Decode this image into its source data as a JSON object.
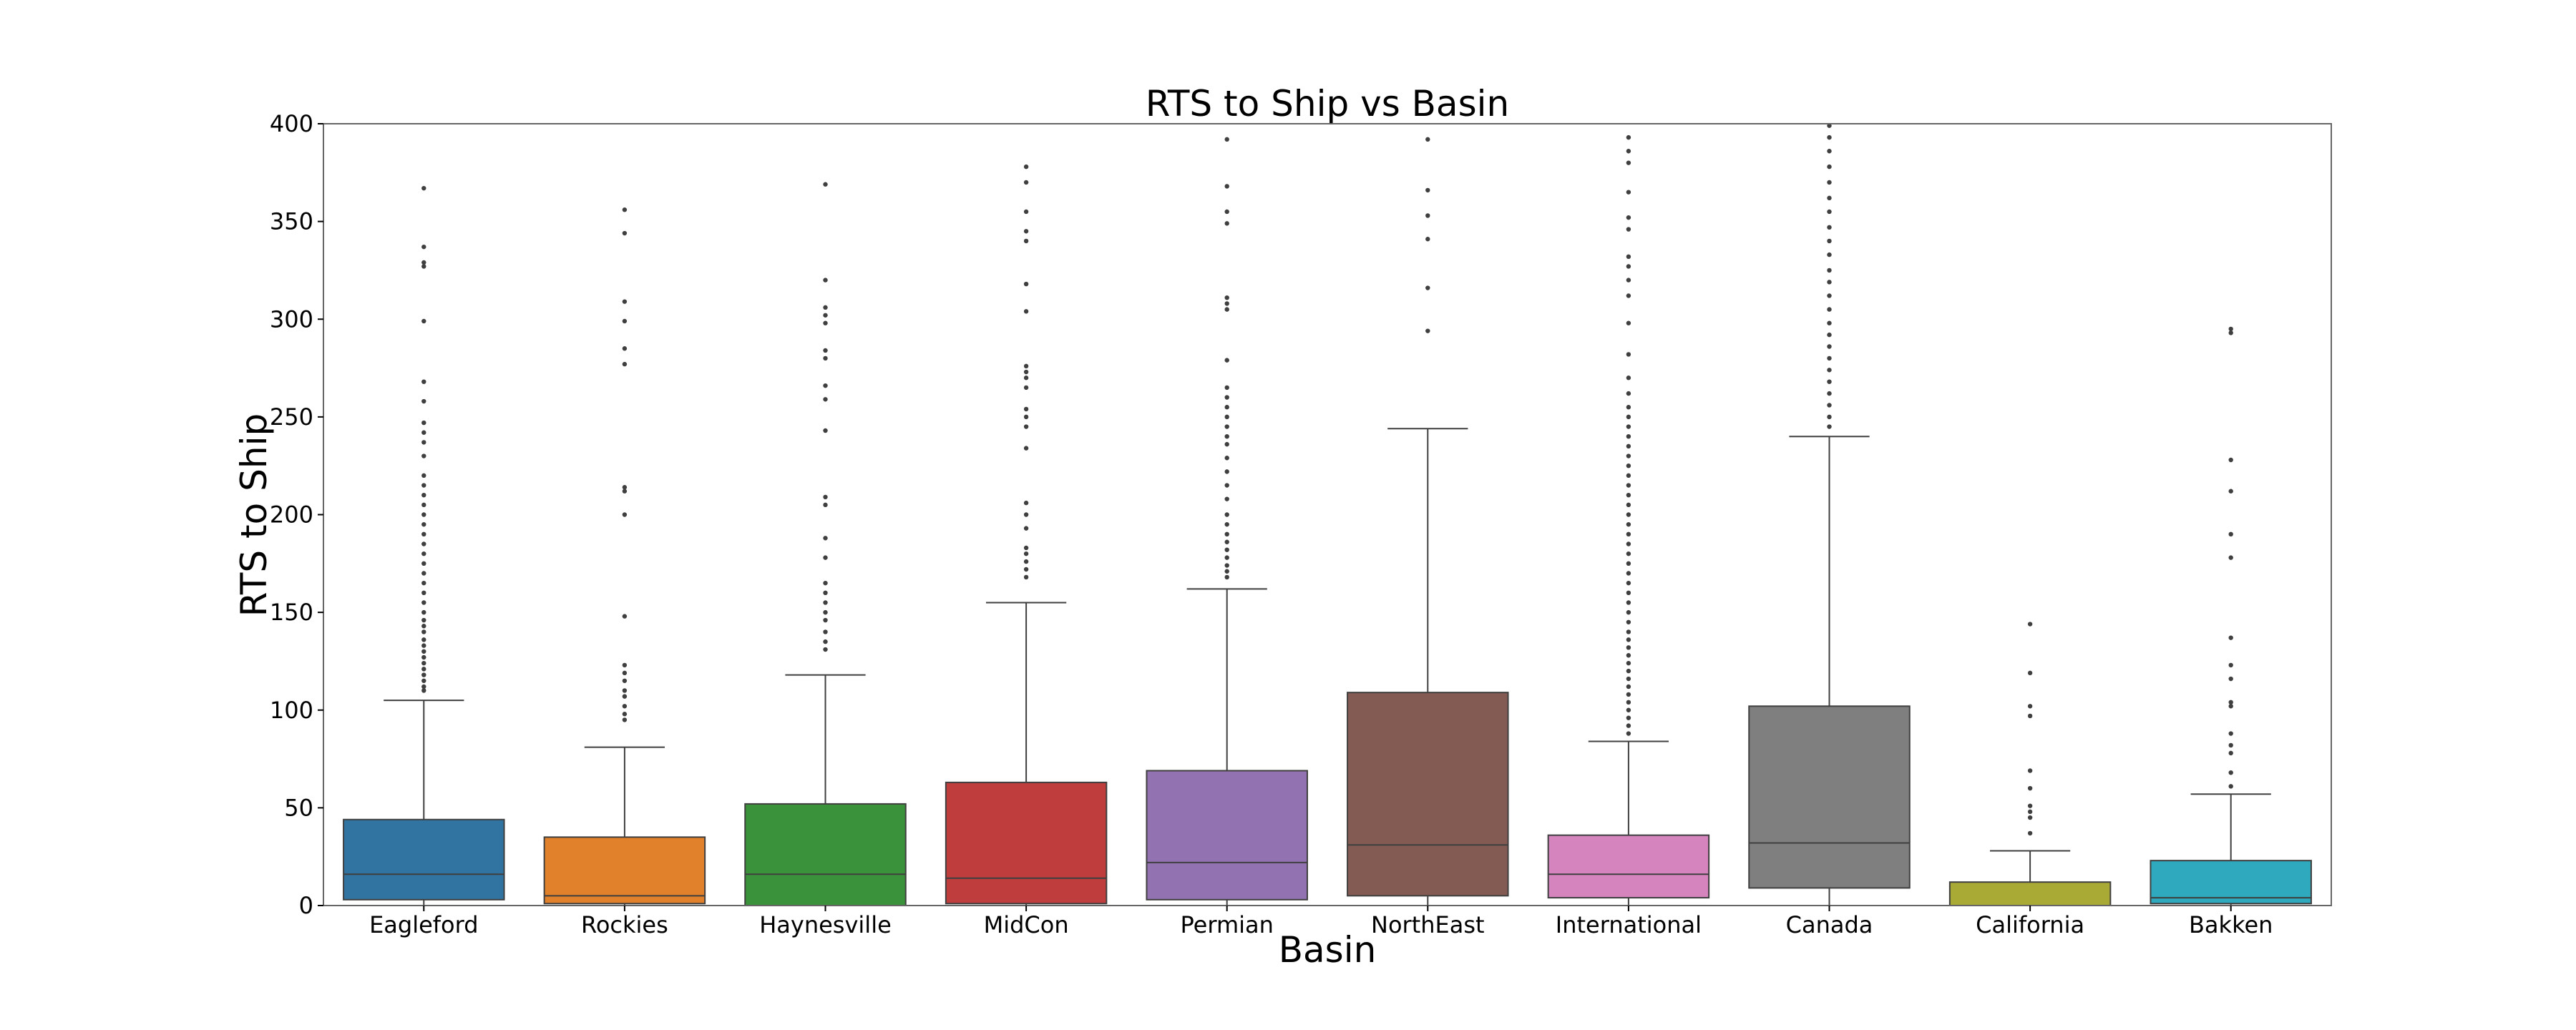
{
  "chart_data": {
    "type": "box",
    "title": "RTS to Ship vs Basin",
    "xlabel": "Basin",
    "ylabel": "RTS to Ship",
    "ylim": [
      0,
      400
    ],
    "yticks": [
      0,
      50,
      100,
      150,
      200,
      250,
      300,
      350,
      400
    ],
    "grid": false,
    "boxes": [
      {
        "category": "Eagleford",
        "color": "#3274a1",
        "whisker_low": 0,
        "q1": 3,
        "median": 16,
        "q3": 44,
        "whisker_high": 105,
        "outliers": [
          110,
          112,
          115,
          118,
          121,
          124,
          127,
          130,
          133,
          136,
          140,
          143,
          146,
          150,
          155,
          160,
          165,
          170,
          175,
          180,
          185,
          190,
          195,
          200,
          205,
          210,
          215,
          220,
          230,
          237,
          242,
          247,
          258,
          268,
          299,
          327,
          329,
          337,
          367
        ]
      },
      {
        "category": "Rockies",
        "color": "#e1812c",
        "whisker_low": 0,
        "q1": 1,
        "median": 5,
        "q3": 35,
        "whisker_high": 81,
        "outliers": [
          95,
          98,
          102,
          107,
          110,
          115,
          119,
          123,
          148,
          200,
          212,
          214,
          277,
          285,
          299,
          309,
          344,
          356
        ]
      },
      {
        "category": "Haynesville",
        "color": "#3a923a",
        "whisker_low": 0,
        "q1": 0,
        "median": 16,
        "q3": 52,
        "whisker_high": 118,
        "outliers": [
          131,
          135,
          140,
          146,
          150,
          155,
          160,
          165,
          178,
          188,
          205,
          209,
          243,
          259,
          266,
          280,
          284,
          298,
          302,
          306,
          320,
          369
        ]
      },
      {
        "category": "MidCon",
        "color": "#c03d3e",
        "whisker_low": 0,
        "q1": 1,
        "median": 14,
        "q3": 63,
        "whisker_high": 155,
        "outliers": [
          168,
          172,
          176,
          180,
          183,
          193,
          200,
          206,
          234,
          245,
          250,
          254,
          265,
          270,
          273,
          276,
          304,
          318,
          340,
          345,
          355,
          370,
          378
        ]
      },
      {
        "category": "Permian",
        "color": "#9372b2",
        "whisker_low": 0,
        "q1": 3,
        "median": 22,
        "q3": 69,
        "whisker_high": 162,
        "outliers": [
          168,
          171,
          174,
          178,
          182,
          186,
          190,
          195,
          200,
          208,
          215,
          222,
          229,
          236,
          240,
          245,
          250,
          255,
          260,
          265,
          279,
          305,
          308,
          311,
          349,
          355,
          368,
          392
        ]
      },
      {
        "category": "NorthEast",
        "color": "#845b53",
        "whisker_low": 0,
        "q1": 5,
        "median": 31,
        "q3": 109,
        "whisker_high": 244,
        "outliers": [
          294,
          316,
          341,
          353,
          366,
          392
        ]
      },
      {
        "category": "International",
        "color": "#d684bd",
        "whisker_low": 0,
        "q1": 4,
        "median": 16,
        "q3": 36,
        "whisker_high": 84,
        "outliers": [
          88,
          92,
          96,
          100,
          104,
          108,
          112,
          116,
          120,
          124,
          128,
          132,
          136,
          140,
          145,
          150,
          155,
          160,
          165,
          170,
          175,
          180,
          185,
          190,
          195,
          200,
          205,
          210,
          215,
          220,
          225,
          230,
          235,
          240,
          245,
          250,
          255,
          262,
          270,
          282,
          298,
          312,
          320,
          327,
          332,
          346,
          352,
          365,
          380,
          386,
          393
        ]
      },
      {
        "category": "Canada",
        "color": "#7f7f7f",
        "whisker_low": 0,
        "q1": 9,
        "median": 32,
        "q3": 102,
        "whisker_high": 240,
        "outliers": [
          245,
          250,
          256,
          262,
          268,
          274,
          280,
          286,
          292,
          298,
          305,
          312,
          319,
          325,
          333,
          340,
          347,
          355,
          362,
          370,
          378,
          386,
          393,
          399
        ]
      },
      {
        "category": "California",
        "color": "#a9a935",
        "whisker_low": 0,
        "q1": 0,
        "median": 0,
        "q3": 12,
        "whisker_high": 28,
        "outliers": [
          37,
          45,
          48,
          51,
          60,
          69,
          97,
          102,
          119,
          144
        ]
      },
      {
        "category": "Bakken",
        "color": "#2fa9bd",
        "whisker_low": 0,
        "q1": 1,
        "median": 4,
        "q3": 23,
        "whisker_high": 57,
        "outliers": [
          61,
          68,
          78,
          82,
          88,
          102,
          104,
          116,
          123,
          137,
          178,
          190,
          212,
          228,
          293,
          295
        ]
      }
    ]
  }
}
